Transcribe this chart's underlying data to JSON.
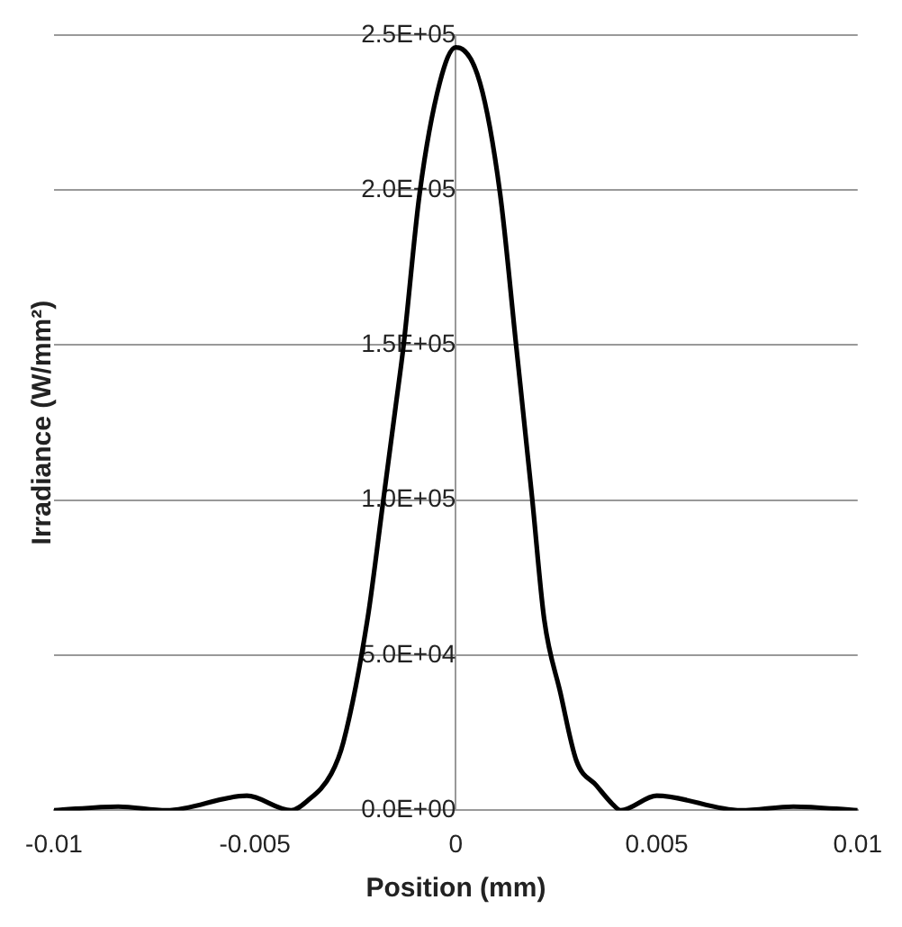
{
  "chart_data": {
    "type": "line",
    "xlabel": "Position (mm)",
    "ylabel": "Irradiance (W/mm²)",
    "x": [
      -0.01,
      -0.0084,
      -0.0072,
      -0.0052,
      -0.0041,
      -0.0037,
      -0.0031,
      -0.0028,
      -0.0022,
      -0.0018,
      -0.0015,
      -0.0013,
      -0.0009,
      -0.0004,
      0,
      0.0006,
      0.0011,
      0.0015,
      0.0019,
      0.0022,
      0.0026,
      0.003,
      0.0035,
      0.0039,
      0.0041,
      0.005,
      0.0071,
      0.0084,
      0.01
    ],
    "series": [
      {
        "color": "#000000",
        "values": [
          0,
          1200,
          0,
          4700,
          0,
          3000,
          11800,
          21900,
          61500,
          100500,
          130000,
          150000,
          199000,
          234600,
          246000,
          234600,
          199000,
          150000,
          100500,
          61500,
          38000,
          16000,
          8000,
          2000,
          0,
          4700,
          0,
          1200,
          0
        ]
      }
    ],
    "xlim": [
      -0.01,
      0.01
    ],
    "xticks": [
      -0.01,
      -0.005,
      0,
      0.005,
      0.01
    ],
    "ylim": [
      0,
      250000
    ],
    "yticks": [
      {
        "value": 0,
        "label": "0.0E+00"
      },
      {
        "value": 50000,
        "label": "5.0E+04"
      },
      {
        "value": 100000,
        "label": "1.0E+05"
      },
      {
        "value": 150000,
        "label": "1.5E+05"
      },
      {
        "value": 200000,
        "label": "2.0E+05"
      },
      {
        "value": 250000,
        "label": "2.5E+05"
      }
    ],
    "grid": "y",
    "marker": "none",
    "line_style": "solid",
    "legend": false
  }
}
